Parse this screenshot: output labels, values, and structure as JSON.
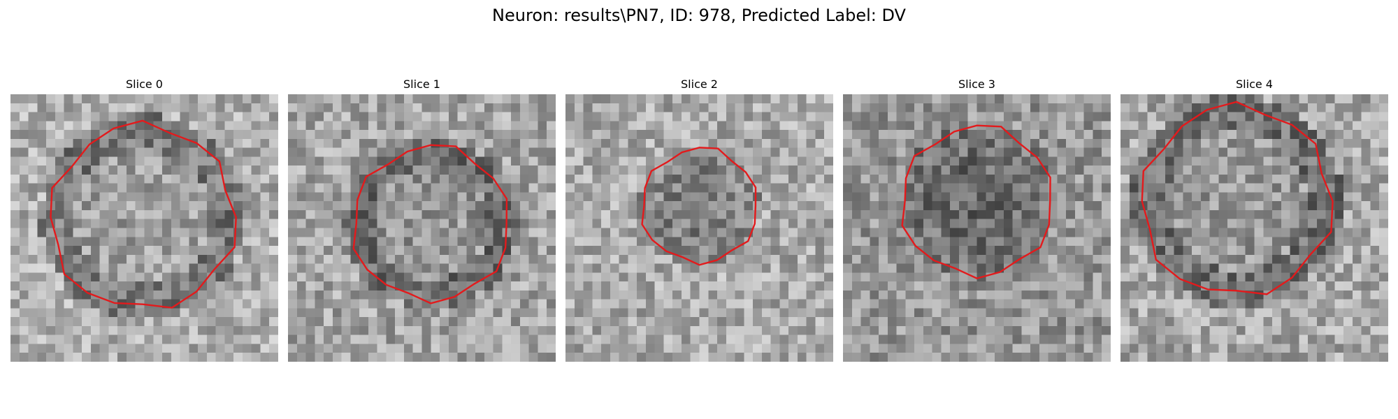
{
  "figure": {
    "title": "Neuron: results\\PN7, ID: 978, Predicted Label: DV"
  },
  "panels": [
    {
      "title": "Slice 0",
      "contour_color": "#e31a1c",
      "intensity": "light",
      "cell_shading": "ring"
    },
    {
      "title": "Slice 1",
      "contour_color": "#e31a1c",
      "intensity": "medium",
      "cell_shading": "ring"
    },
    {
      "title": "Slice 2",
      "contour_color": "#e31a1c",
      "intensity": "medium",
      "cell_shading": "dark-core"
    },
    {
      "title": "Slice 3",
      "contour_color": "#e31a1c",
      "intensity": "dark",
      "cell_shading": "dark-core"
    },
    {
      "title": "Slice 4",
      "contour_color": "#e31a1c",
      "intensity": "medium",
      "cell_shading": "ring"
    }
  ],
  "colormap": "gray",
  "colors": {
    "contour": "#e31a1c",
    "background": "#ffffff"
  }
}
